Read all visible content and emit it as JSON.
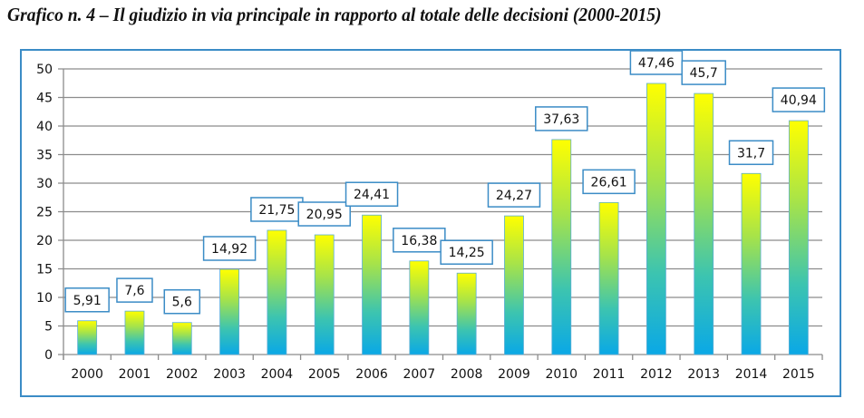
{
  "chart_data": {
    "type": "bar",
    "title": "Grafico n. 4 – Il giudizio in via principale in rapporto al totale delle decisioni (2000-2015)",
    "xlabel": "",
    "ylabel": "",
    "categories": [
      "2000",
      "2001",
      "2002",
      "2003",
      "2004",
      "2005",
      "2006",
      "2007",
      "2008",
      "2009",
      "2010",
      "2011",
      "2012",
      "2013",
      "2014",
      "2015"
    ],
    "values": [
      5.91,
      7.6,
      5.6,
      14.92,
      21.75,
      20.95,
      24.41,
      16.38,
      14.25,
      24.27,
      37.63,
      26.61,
      47.46,
      45.7,
      31.7,
      40.94
    ],
    "data_labels": [
      "5,91",
      "7,6",
      "5,6",
      "14,92",
      "21,75",
      "20,95",
      "24,41",
      "16,38",
      "14,25",
      "24,27",
      "37,63",
      "26,61",
      "47,46",
      "45,7",
      "31,7",
      "40,94"
    ],
    "ylim": [
      0,
      50
    ],
    "yticks": [
      "0",
      "5",
      "10",
      "15",
      "20",
      "25",
      "30",
      "35",
      "40",
      "45",
      "50"
    ],
    "grid": true,
    "legend": "none",
    "colors": {
      "bar_top": "#ffff00",
      "bar_mid": "#8edc5a",
      "bar_bottom": "#0aa8e6",
      "label_border": "#3b8cc6",
      "grid": "#8c8c8c"
    }
  }
}
